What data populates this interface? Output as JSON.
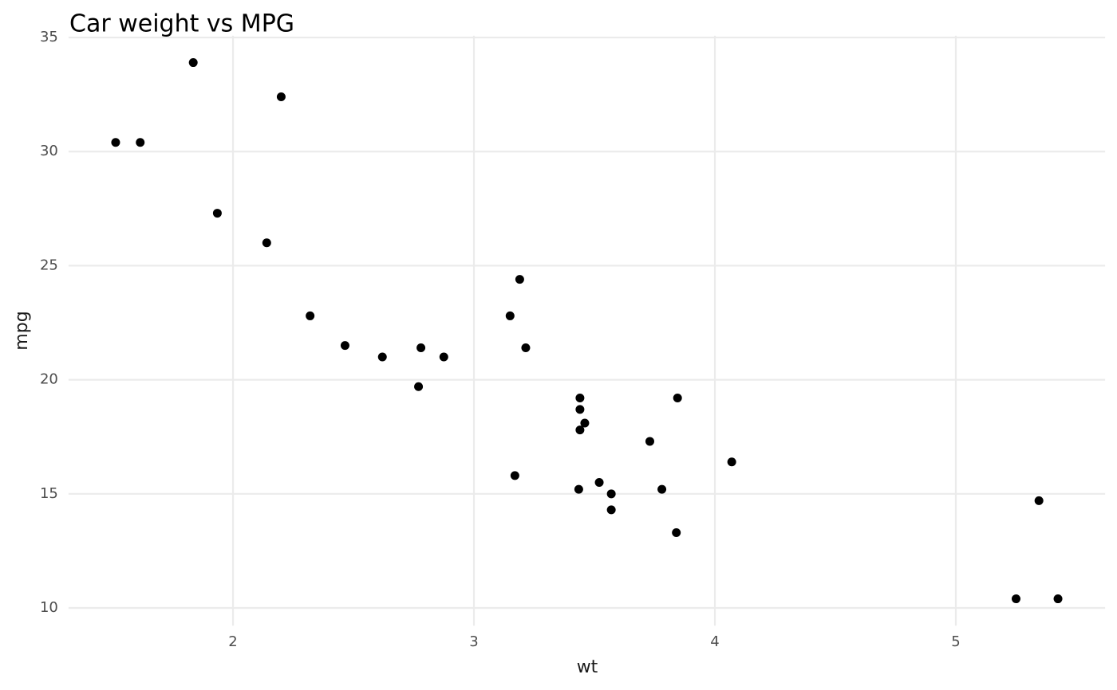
{
  "chart_data": {
    "type": "scatter",
    "title": "Car weight vs MPG",
    "x_label": "wt",
    "y_label": "mpg",
    "x": [
      2.62,
      2.875,
      2.32,
      3.215,
      3.44,
      3.46,
      3.57,
      3.19,
      3.15,
      3.44,
      3.44,
      4.07,
      3.73,
      3.78,
      5.25,
      5.424,
      5.345,
      2.2,
      1.615,
      1.835,
      2.465,
      3.52,
      3.435,
      3.84,
      3.845,
      1.935,
      2.14,
      1.513,
      3.17,
      2.77,
      3.57,
      2.78
    ],
    "values": [
      21.0,
      21.0,
      22.8,
      21.4,
      18.7,
      18.1,
      14.3,
      24.4,
      22.8,
      19.2,
      17.8,
      16.4,
      17.3,
      15.2,
      10.4,
      10.4,
      14.7,
      32.4,
      30.4,
      33.9,
      21.5,
      15.5,
      15.2,
      13.3,
      19.2,
      27.3,
      26.0,
      30.4,
      15.8,
      19.7,
      15.0,
      21.4
    ],
    "color": "#000000",
    "xlim": [
      1.31745,
      5.61955
    ],
    "ylim": [
      9.225,
      35.075
    ],
    "xticks": [
      2,
      3,
      4,
      5
    ],
    "yticks": [
      10,
      15,
      20,
      25,
      30,
      35
    ],
    "grid": true
  }
}
